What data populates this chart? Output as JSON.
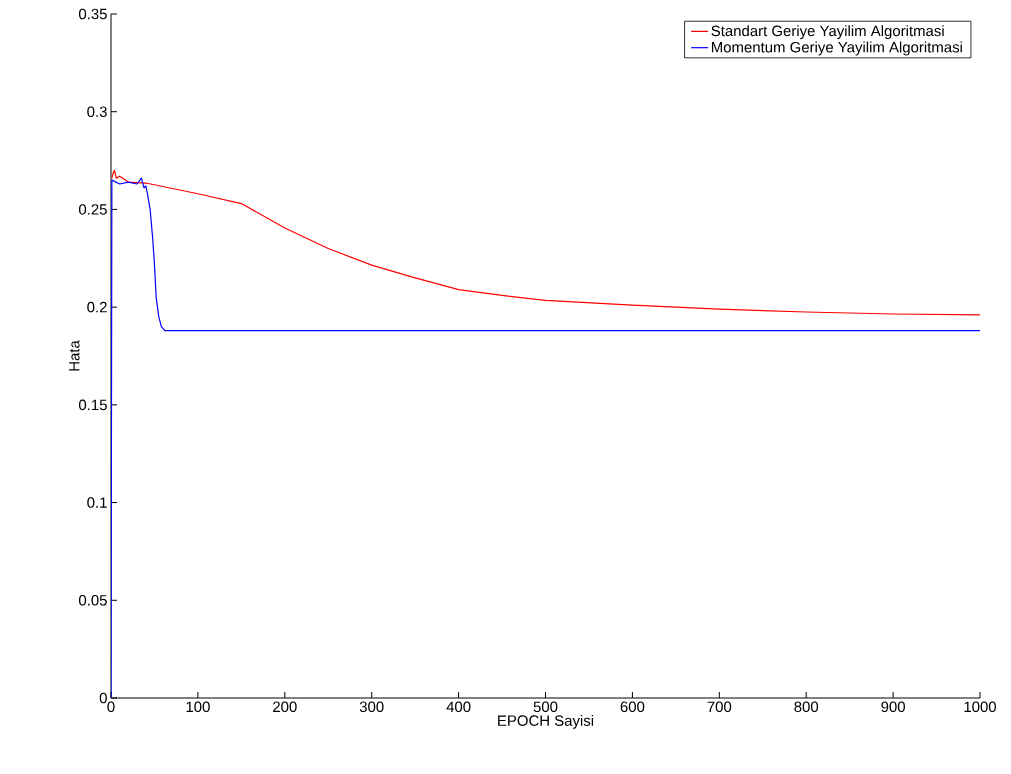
{
  "chart_data": {
    "type": "line",
    "xlabel": "EPOCH Sayisi",
    "ylabel": "Hata",
    "xlim": [
      0,
      1000
    ],
    "ylim": [
      0,
      0.35
    ],
    "xticks": [
      0,
      100,
      200,
      300,
      400,
      500,
      600,
      700,
      800,
      900,
      1000
    ],
    "yticks": [
      0,
      0.05,
      0.1,
      0.15,
      0.2,
      0.25,
      0.3,
      0.35
    ],
    "legend": "top right",
    "grid": false,
    "marker": "none",
    "line_style": "solid",
    "series": [
      {
        "name": "Standart Geriye Yayilim Algoritmasi",
        "color": "#ff0000",
        "x": [
          1,
          2,
          4,
          6,
          10,
          20,
          40,
          100,
          150,
          200,
          250,
          300,
          350,
          400,
          450,
          500,
          600,
          700,
          800,
          900,
          1000
        ],
        "values": [
          0.266,
          0.268,
          0.27,
          0.266,
          0.267,
          0.264,
          0.2635,
          0.258,
          0.253,
          0.2405,
          0.23,
          0.2215,
          0.215,
          0.209,
          0.206,
          0.2035,
          0.201,
          0.199,
          0.1975,
          0.1965,
          0.196
        ]
      },
      {
        "name": "Momentum Geriye Yayilim Algoritmasi",
        "color": "#0000ff",
        "x": [
          0,
          1,
          10,
          20,
          30,
          35,
          38,
          40,
          42,
          45,
          48,
          50,
          52,
          55,
          58,
          62,
          1000
        ],
        "values": [
          0,
          0.265,
          0.263,
          0.264,
          0.263,
          0.266,
          0.261,
          0.262,
          0.258,
          0.25,
          0.235,
          0.222,
          0.205,
          0.195,
          0.19,
          0.188,
          0.188
        ]
      }
    ]
  }
}
